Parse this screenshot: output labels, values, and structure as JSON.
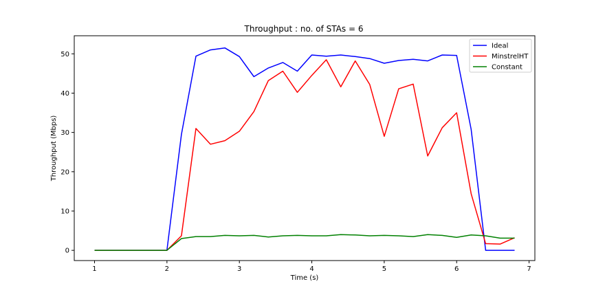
{
  "chart_data": {
    "type": "line",
    "title": "Throughput : no. of STAs = 6",
    "xlabel": "Time (s)",
    "ylabel": "Throughput (Mbps)",
    "xlim": [
      0.72,
      7.08
    ],
    "ylim": [
      -2.6,
      54.6
    ],
    "xticks": [
      1,
      2,
      3,
      4,
      5,
      6,
      7
    ],
    "yticks": [
      0,
      10,
      20,
      30,
      40,
      50
    ],
    "grid": false,
    "legend_position": "top-right",
    "x": [
      1.0,
      1.2,
      1.4,
      1.6,
      1.8,
      2.0,
      2.2,
      2.4,
      2.6,
      2.8,
      3.0,
      3.2,
      3.4,
      3.6,
      3.8,
      4.0,
      4.2,
      4.4,
      4.6,
      4.8,
      5.0,
      5.2,
      5.4,
      5.6,
      5.8,
      6.0,
      6.2,
      6.4,
      6.6,
      6.8
    ],
    "series": [
      {
        "name": "Ideal",
        "color": "#0000ff",
        "values": [
          0,
          0,
          0,
          0,
          0,
          0,
          29.5,
          49.4,
          51.0,
          51.5,
          49.3,
          44.2,
          46.4,
          47.8,
          45.6,
          49.7,
          49.4,
          49.7,
          49.3,
          48.8,
          47.6,
          48.3,
          48.6,
          48.2,
          49.7,
          49.6,
          30.8,
          0,
          0,
          0
        ]
      },
      {
        "name": "MinstrelHT",
        "color": "#ff0000",
        "values": [
          0,
          0,
          0,
          0,
          0,
          0,
          3.7,
          31.0,
          27.0,
          27.9,
          30.3,
          35.3,
          43.2,
          45.6,
          40.2,
          44.5,
          48.5,
          41.6,
          48.2,
          42.2,
          29.0,
          41.1,
          42.3,
          24.0,
          31.2,
          35.0,
          14.4,
          1.7,
          1.6,
          3.2
        ]
      },
      {
        "name": "Constant",
        "color": "#008000",
        "values": [
          0,
          0,
          0,
          0,
          0,
          0,
          3.0,
          3.5,
          3.5,
          3.8,
          3.7,
          3.8,
          3.4,
          3.7,
          3.8,
          3.7,
          3.7,
          4.0,
          3.9,
          3.7,
          3.8,
          3.7,
          3.5,
          4.0,
          3.8,
          3.3,
          3.9,
          3.7,
          3.1,
          3.1
        ]
      }
    ]
  }
}
